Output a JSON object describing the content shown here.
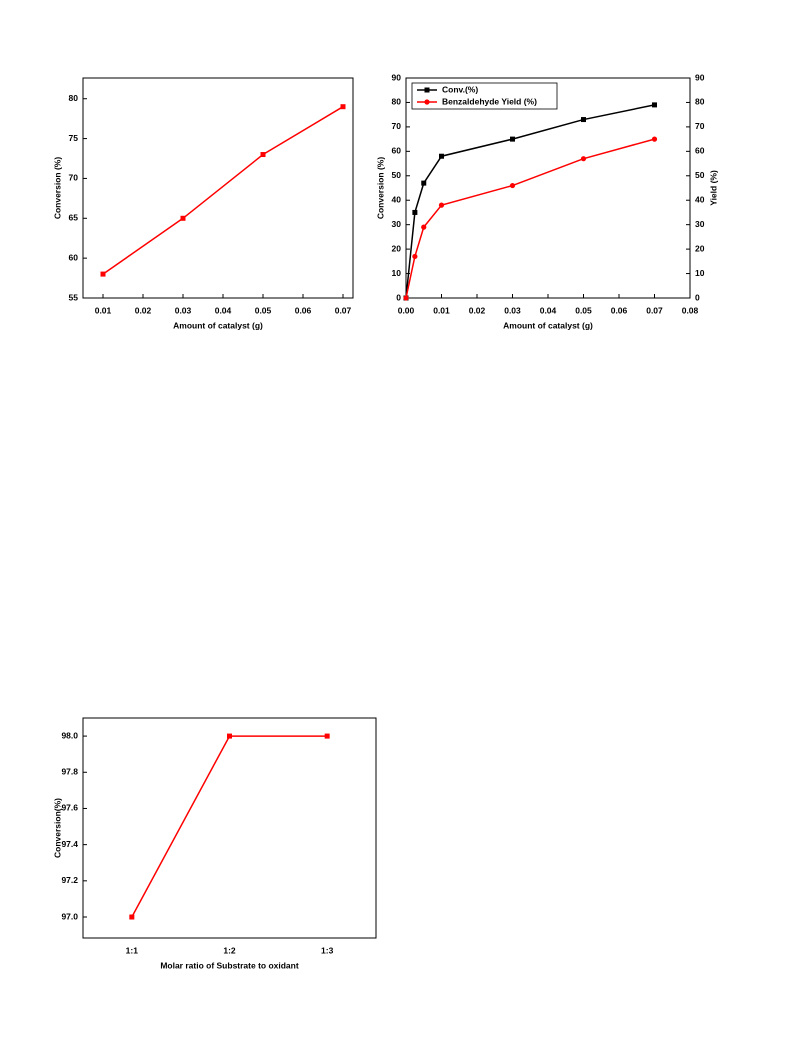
{
  "chart_data": [
    {
      "type": "line",
      "x_label": "Amount of catalyst (g)",
      "y_label": "Conversion (%)",
      "x": [
        0.01,
        0.03,
        0.05,
        0.07
      ],
      "values": [
        58,
        65,
        73,
        79
      ],
      "color": "#ff0000",
      "marker": "square",
      "xlim": [
        0.005,
        0.0725
      ],
      "xticks": [
        0.01,
        0.02,
        0.03,
        0.04,
        0.05,
        0.06,
        0.07
      ],
      "ylim": [
        55,
        82.6
      ],
      "yticks": [
        55,
        60,
        65,
        70,
        75,
        80
      ]
    },
    {
      "type": "line",
      "x_label": "Amount of catalyst (g)",
      "y_label": "Conversion (%)",
      "y2_label": "Yield (%)",
      "x": [
        0,
        0.0025,
        0.005,
        0.01,
        0.03,
        0.05,
        0.07
      ],
      "series": [
        {
          "name": "Conv.(%)",
          "color": "#000000",
          "marker": "square",
          "values": [
            0,
            35,
            47,
            58,
            65,
            73,
            79
          ]
        },
        {
          "name": "Benzaldehyde Yield (%)",
          "color": "#ff0000",
          "marker": "circle",
          "axis": "y2",
          "values": [
            0,
            17,
            29,
            38,
            46,
            57,
            65
          ]
        }
      ],
      "xlim": [
        0,
        0.08
      ],
      "xticks": [
        {
          "value": 0,
          "label": "0.00"
        },
        0.01,
        0.02,
        0.03,
        0.04,
        0.05,
        0.06,
        0.07,
        0.08
      ],
      "ylim": [
        0,
        90
      ],
      "yticks": [
        0,
        10,
        20,
        30,
        40,
        50,
        60,
        70,
        80,
        90
      ],
      "y2lim": [
        0,
        90
      ],
      "y2ticks": [
        0,
        10,
        20,
        30,
        40,
        50,
        60,
        70,
        80,
        90
      ],
      "legend": "upper left"
    },
    {
      "type": "line",
      "x_label": "Molar ratio of Substrate to oxidant",
      "y_label": "Conversion(%)",
      "categories": [
        "1:1",
        "1:2",
        "1:3"
      ],
      "values": [
        97.0,
        98.0,
        98.0
      ],
      "color": "#ff0000",
      "marker": "square",
      "ylim": [
        96.884,
        98.1
      ],
      "yticks": [
        {
          "value": 97,
          "label": "97.0"
        },
        97.2,
        97.4,
        97.6,
        97.8,
        {
          "value": 98,
          "label": "98.0"
        }
      ]
    }
  ]
}
